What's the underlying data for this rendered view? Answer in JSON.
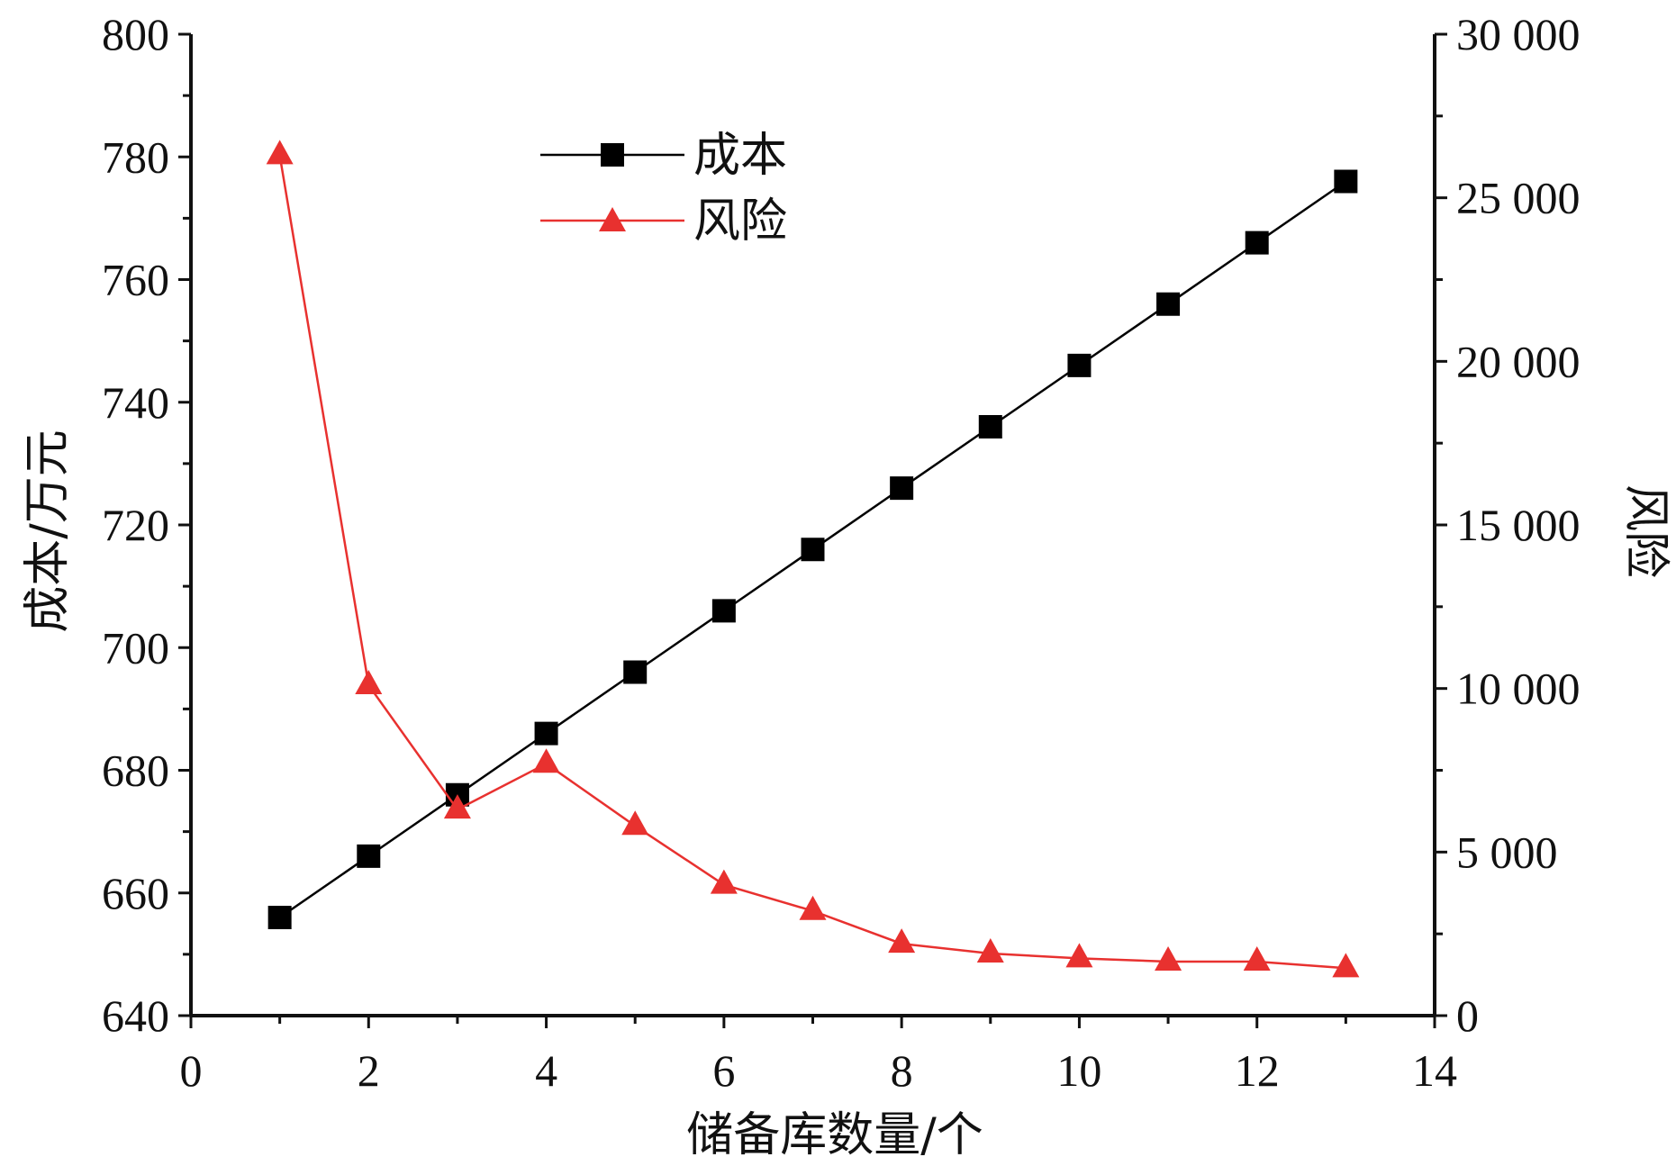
{
  "chart_data": {
    "type": "line",
    "title": "",
    "xlabel": "储备库数量/个",
    "ylabel_left": "成本/万元",
    "ylabel_right": "风险",
    "xlim": [
      0,
      14
    ],
    "ylim_left": [
      640,
      800
    ],
    "ylim_right": [
      0,
      30000
    ],
    "x_ticks": [
      0,
      2,
      4,
      6,
      8,
      10,
      12,
      14
    ],
    "x_tick_labels": [
      "0",
      "2",
      "4",
      "6",
      "8",
      "10",
      "12",
      "14"
    ],
    "y_left_ticks": [
      640,
      660,
      680,
      700,
      720,
      740,
      760,
      780,
      800
    ],
    "y_left_tick_labels": [
      "640",
      "660",
      "680",
      "700",
      "720",
      "740",
      "760",
      "780",
      "800"
    ],
    "y_right_ticks": [
      0,
      5000,
      10000,
      15000,
      20000,
      25000,
      30000
    ],
    "y_right_tick_labels": [
      "0",
      "5 000",
      "10 000",
      "15 000",
      "20 000",
      "25 000",
      "30 000"
    ],
    "grid": false,
    "legend_position": "top-center",
    "x": [
      1,
      2,
      3,
      4,
      5,
      6,
      7,
      8,
      9,
      10,
      11,
      12,
      13
    ],
    "series": [
      {
        "name": "成本",
        "axis": "left",
        "color": "#000000",
        "marker": "square",
        "values": [
          656,
          666,
          676,
          686,
          696,
          706,
          716,
          726,
          736,
          746,
          756,
          766,
          776
        ]
      },
      {
        "name": "风险",
        "axis": "right",
        "color": "#e8312f",
        "marker": "triangle",
        "values": [
          26300,
          10100,
          6300,
          7700,
          5800,
          4000,
          3200,
          2200,
          1900,
          1750,
          1650,
          1650,
          1450
        ]
      }
    ]
  }
}
